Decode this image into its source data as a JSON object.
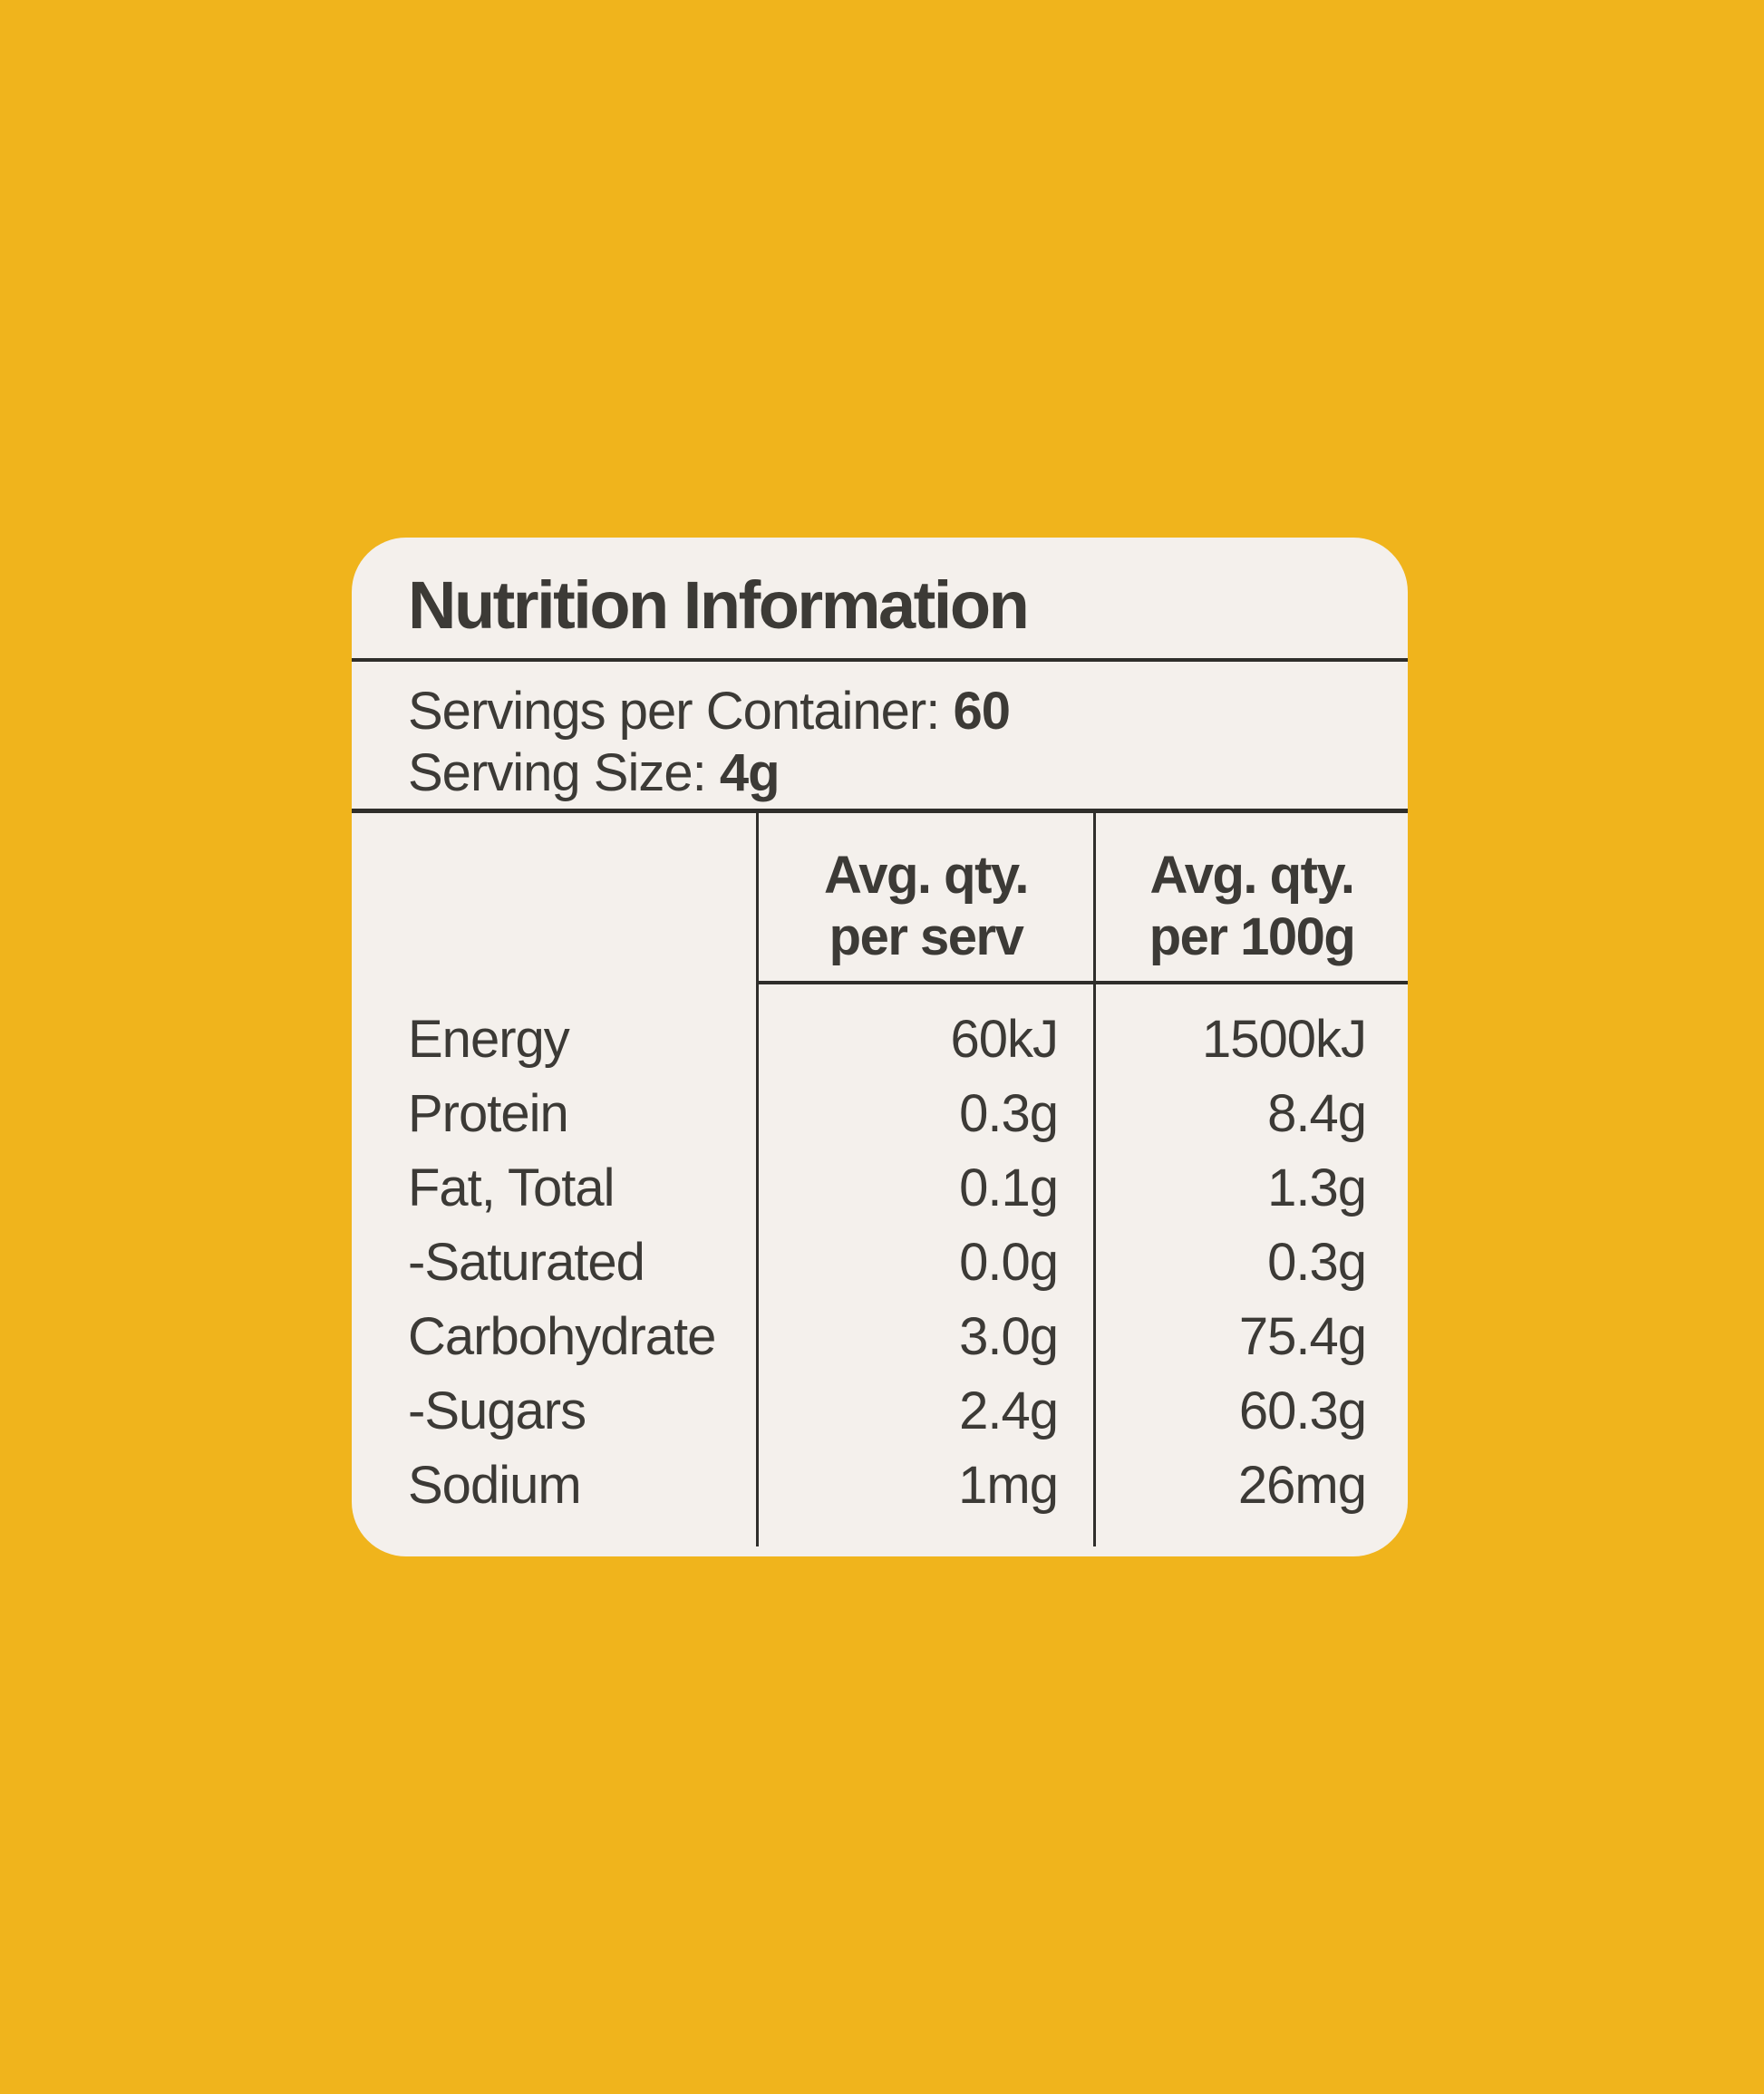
{
  "colors": {
    "background": "#f0b41c",
    "card": "#f4f0ec",
    "text": "#3c3a36",
    "line": "#2f2e2b"
  },
  "label": {
    "title": "Nutrition Information",
    "serving_info": {
      "line1_label": "Servings per Container: ",
      "line1_value": "60",
      "line2_label": "Serving Size: ",
      "line2_value": "4g"
    },
    "table": {
      "column_headers": [
        "Avg. qty.\nper serv",
        "Avg. qty.\nper 100g"
      ],
      "rows": [
        {
          "label": "Energy",
          "per_serv": "60kJ",
          "per_100g": "1500kJ"
        },
        {
          "label": "Protein",
          "per_serv": "0.3g",
          "per_100g": "8.4g"
        },
        {
          "label": "Fat, Total",
          "per_serv": "0.1g",
          "per_100g": "1.3g"
        },
        {
          "label": "-Saturated",
          "per_serv": "0.0g",
          "per_100g": "0.3g"
        },
        {
          "label": "Carbohydrate",
          "per_serv": "3.0g",
          "per_100g": "75.4g"
        },
        {
          "label": "-Sugars",
          "per_serv": "2.4g",
          "per_100g": "60.3g"
        },
        {
          "label": "Sodium",
          "per_serv": "1mg",
          "per_100g": "26mg"
        }
      ]
    }
  }
}
